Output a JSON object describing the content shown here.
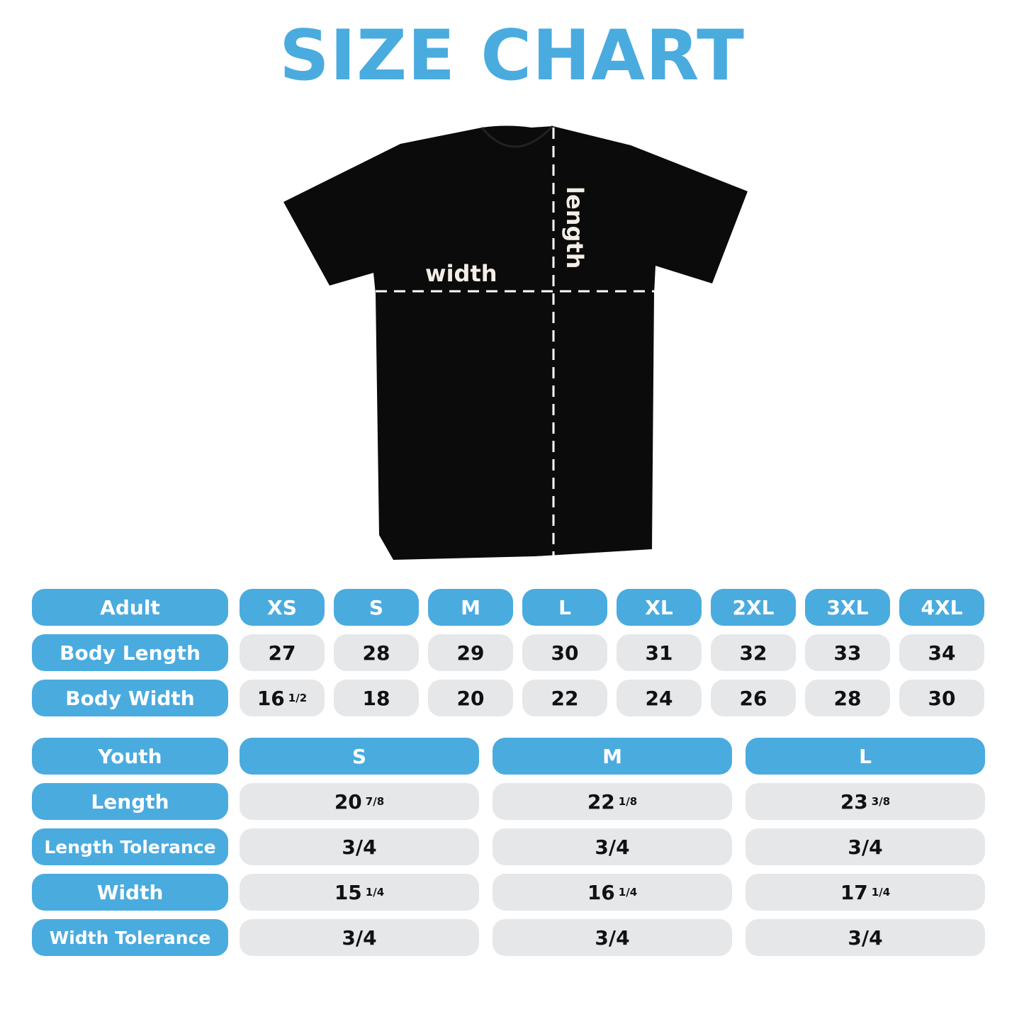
{
  "title": "SIZE CHART",
  "shirt": {
    "width_label": "width",
    "length_label": "length",
    "color": "#0b0b0b"
  },
  "colors": {
    "accent": "#4aabdf",
    "cell": "#e6e7e9"
  },
  "adult": {
    "header": "Adult",
    "sizes": [
      "XS",
      "S",
      "M",
      "L",
      "XL",
      "2XL",
      "3XL",
      "4XL"
    ],
    "rows": [
      {
        "label": "Body Length",
        "values": [
          {
            "w": "27"
          },
          {
            "w": "28"
          },
          {
            "w": "29"
          },
          {
            "w": "30"
          },
          {
            "w": "31"
          },
          {
            "w": "32"
          },
          {
            "w": "33"
          },
          {
            "w": "34"
          }
        ]
      },
      {
        "label": "Body Width",
        "values": [
          {
            "w": "16",
            "f": "1/2"
          },
          {
            "w": "18"
          },
          {
            "w": "20"
          },
          {
            "w": "22"
          },
          {
            "w": "24"
          },
          {
            "w": "26"
          },
          {
            "w": "28"
          },
          {
            "w": "30"
          }
        ]
      }
    ]
  },
  "youth": {
    "header": "Youth",
    "sizes": [
      "S",
      "M",
      "L"
    ],
    "rows": [
      {
        "label": "Length",
        "values": [
          {
            "w": "20",
            "f": "7/8"
          },
          {
            "w": "22",
            "f": "1/8"
          },
          {
            "w": "23",
            "f": "3/8"
          }
        ]
      },
      {
        "label": "Length Tolerance",
        "values": [
          {
            "w": "3/4"
          },
          {
            "w": "3/4"
          },
          {
            "w": "3/4"
          }
        ]
      },
      {
        "label": "Width",
        "values": [
          {
            "w": "15",
            "f": "1/4"
          },
          {
            "w": "16",
            "f": "1/4"
          },
          {
            "w": "17",
            "f": "1/4"
          }
        ]
      },
      {
        "label": "Width Tolerance",
        "values": [
          {
            "w": "3/4"
          },
          {
            "w": "3/4"
          },
          {
            "w": "3/4"
          }
        ]
      }
    ]
  }
}
